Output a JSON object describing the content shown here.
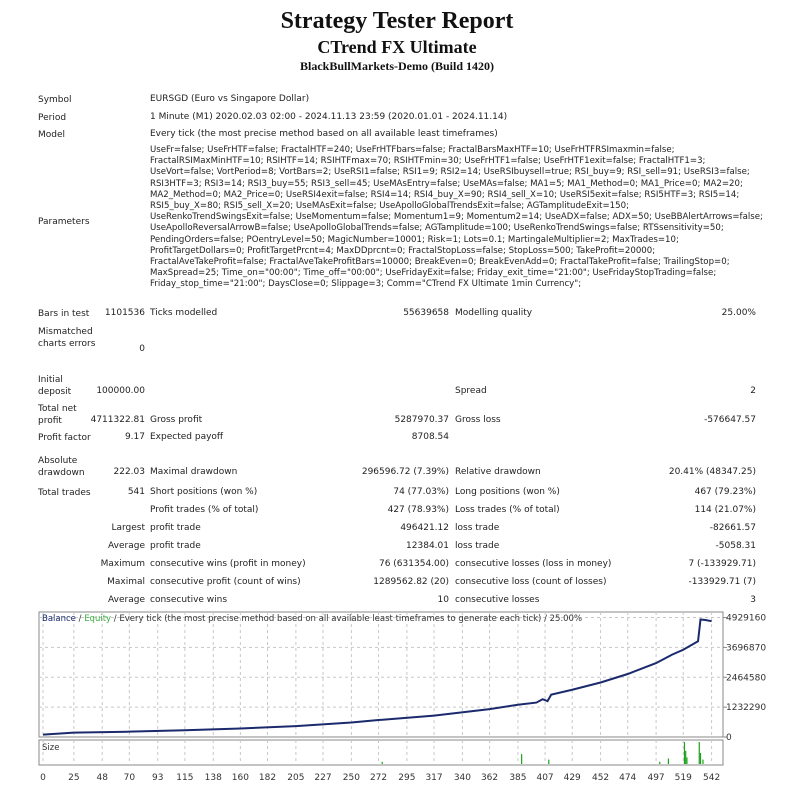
{
  "header": {
    "title": "Strategy Tester Report",
    "expert": "CTrend FX Ultimate",
    "server": "BlackBullMarkets-Demo (Build 1420)"
  },
  "info": {
    "symbol_label": "Symbol",
    "symbol": "EURSGD (Euro vs Singapore Dollar)",
    "period_label": "Period",
    "period": "1 Minute (M1) 2020.02.03 02:00 - 2024.11.13 23:59 (2020.01.01 - 2024.11.14)",
    "model_label": "Model",
    "model": "Every tick (the most precise method based on all available least timeframes)",
    "parameters_label": "Parameters",
    "parameters": "UseFr=false; UseFrHTF=false; FractalHTF=240; UseFrHTFbars=false; FractalBarsMaxHTF=10; UseFrHTFRSImaxmin=false; FractalRSIMaxMinHTF=10; RSIHTF=14; RSIHTFmax=70; RSIHTFmin=30; UseFrHTF1=false; UseFrHTF1exit=false; FractalHTF1=3; UseVort=false; VortPeriod=8; VortBars=2; UseRSI1=false; RSI1=9; RSI2=14; UseRSIbuysell=true; RSI_buy=9; RSI_sell=91; UseRSI3=false; RSI3HTF=3; RSI3=14; RSI3_buy=55; RSI3_sell=45; UseMAsEntry=false; UseMAs=false; MA1=5; MA1_Method=0; MA1_Price=0; MA2=20; MA2_Method=0; MA2_Price=0; UseRSI4exit=false; RSI4=14; RSI4_buy_X=90; RSI4_sell_X=10; UseRSI5exit=false; RSI5HTF=3; RSI5=14; RSI5_buy_X=80; RSI5_sell_X=20; UseMAsExit=false; UseApolloGlobalTrendsExit=false; AGTamplitudeExit=150; UseRenkoTrendSwingsExit=false; UseMomentum=false; Momentum1=9; Momentum2=14; UseADX=false; ADX=50; UseBBAlertArrows=false; UseApolloReversalArrowB=false; UseApolloGlobalTrends=false; AGTamplitude=100; UseRenkoTrendSwings=false; RTSsensitivity=50; PendingOrders=false; POentryLevel=50; MagicNumber=10001; Risk=1; Lots=0.1; MartingaleMultiplier=2; MaxTrades=10; ProfitTargetDollars=0; ProfitTargetPrcnt=4; MaxDDprcnt=0; FractalStopLoss=false; StopLoss=500; TakeProfit=20000; FractalAveTakeProfit=false; FractalAveTakeProfitBars=10000; BreakEven=0; BreakEvenAdd=0; FractalTakeProfit=false; TrailingStop=0; MaxSpread=25; Time_on=\"00:00\"; Time_off=\"00:00\"; UseFridayExit=false; Friday_exit_time=\"21:00\"; UseFridayStopTrading=false; Friday_stop_time=\"21:00\"; DaysClose=0; Slippage=3; Comm=\"CTrend FX Ultimate 1min Currency\";"
  },
  "stats": [
    [
      "Bars in test",
      "1101536",
      "Ticks modelled",
      "55639658",
      "Modelling quality",
      "25.00%"
    ],
    [
      "Mismatched charts errors",
      "0",
      "",
      "",
      "",
      ""
    ],
    [
      "Initial deposit",
      "100000.00",
      "",
      "",
      "Spread",
      "2"
    ],
    [
      "Total net profit",
      "4711322.81",
      "Gross profit",
      "5287970.37",
      "Gross loss",
      "-576647.57"
    ],
    [
      "Profit factor",
      "9.17",
      "Expected payoff",
      "8708.54",
      "",
      ""
    ],
    [
      "Absolute drawdown",
      "222.03",
      "Maximal drawdown",
      "296596.72 (7.39%)",
      "Relative drawdown",
      "20.41% (48347.25)"
    ],
    [
      "Total trades",
      "541",
      "Short positions (won %)",
      "74 (77.03%)",
      "Long positions (won %)",
      "467 (79.23%)"
    ],
    [
      "",
      "",
      "Profit trades (% of total)",
      "427 (78.93%)",
      "Loss trades (% of total)",
      "114 (21.07%)"
    ],
    [
      "",
      "Largest",
      "profit trade",
      "496421.12",
      "loss trade",
      "-82661.57"
    ],
    [
      "",
      "Average",
      "profit trade",
      "12384.01",
      "loss trade",
      "-5058.31"
    ],
    [
      "",
      "Maximum",
      "consecutive wins (profit in money)",
      "76 (631354.00)",
      "consecutive losses (loss in money)",
      "7 (-133929.71)"
    ],
    [
      "",
      "Maximal",
      "consecutive profit (count of wins)",
      "1289562.82 (20)",
      "consecutive loss (count of losses)",
      "-133929.71 (7)"
    ],
    [
      "",
      "Average",
      "consecutive wins",
      "10",
      "consecutive losses",
      "3"
    ]
  ],
  "chart_data": {
    "type": "line",
    "legend": {
      "balance": "Balance",
      "equity": "Equity",
      "rest": " / Every tick (the most precise method based on all available least timeframes to generate each tick) / 25.00%"
    },
    "colors": {
      "balance": "#1a2a6c",
      "equity": "#3cb043",
      "volume": "#1aa31a",
      "grid": "#c8c8c8"
    },
    "x_ticks": [
      0,
      25,
      48,
      70,
      93,
      115,
      138,
      160,
      182,
      205,
      227,
      250,
      272,
      295,
      317,
      340,
      362,
      385,
      407,
      429,
      452,
      474,
      497,
      519,
      542
    ],
    "y_ticks": [
      0,
      1232290,
      2464580,
      3696870,
      4929160
    ],
    "xlim": [
      0,
      548
    ],
    "ylim": [
      0,
      5000000
    ],
    "grid": true,
    "size_label": "Size",
    "balance": [
      [
        0,
        100000
      ],
      [
        25,
        180000
      ],
      [
        70,
        220000
      ],
      [
        115,
        280000
      ],
      [
        160,
        350000
      ],
      [
        205,
        450000
      ],
      [
        250,
        600000
      ],
      [
        272,
        700000
      ],
      [
        317,
        880000
      ],
      [
        362,
        1150000
      ],
      [
        385,
        1330000
      ],
      [
        400,
        1420000
      ],
      [
        405,
        1560000
      ],
      [
        409,
        1480000
      ],
      [
        412,
        1750000
      ],
      [
        429,
        1950000
      ],
      [
        452,
        2250000
      ],
      [
        474,
        2600000
      ],
      [
        497,
        3050000
      ],
      [
        510,
        3400000
      ],
      [
        519,
        3600000
      ],
      [
        531,
        3950000
      ],
      [
        533,
        4850000
      ],
      [
        537,
        4830000
      ],
      [
        542,
        4780000
      ]
    ],
    "size": [
      [
        275,
        0.1
      ],
      [
        388,
        0.45
      ],
      [
        410,
        0.2
      ],
      [
        500,
        0.1
      ],
      [
        507,
        0.25
      ],
      [
        520,
        1.0
      ],
      [
        521,
        0.6
      ],
      [
        522,
        0.3
      ],
      [
        532,
        1.0
      ],
      [
        533,
        0.5
      ],
      [
        535,
        0.2
      ]
    ]
  }
}
